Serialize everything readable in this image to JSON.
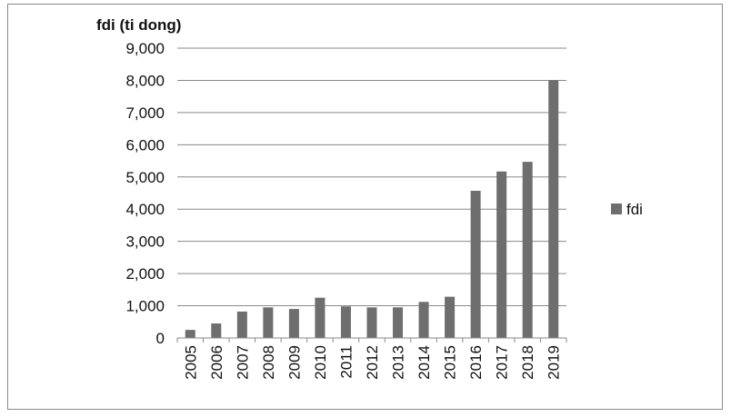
{
  "chart_data": {
    "type": "bar",
    "ylabel": "fdi (ti dong)",
    "categories": [
      "2005",
      "2006",
      "2007",
      "2008",
      "2009",
      "2010",
      "2011",
      "2012",
      "2013",
      "2014",
      "2015",
      "2016",
      "2017",
      "2018",
      "2019"
    ],
    "series": [
      {
        "name": "fdi",
        "values": [
          250,
          450,
          820,
          950,
          900,
          1250,
          980,
          950,
          950,
          1120,
          1280,
          4570,
          5170,
          5470,
          8000
        ],
        "color": "#6e6e6e"
      }
    ],
    "ylim": [
      0,
      9000
    ],
    "yticks": [
      "0",
      "1,000",
      "2,000",
      "3,000",
      "4,000",
      "5,000",
      "6,000",
      "7,000",
      "8,000",
      "9,000"
    ],
    "grid": true,
    "legend_position": "right"
  }
}
